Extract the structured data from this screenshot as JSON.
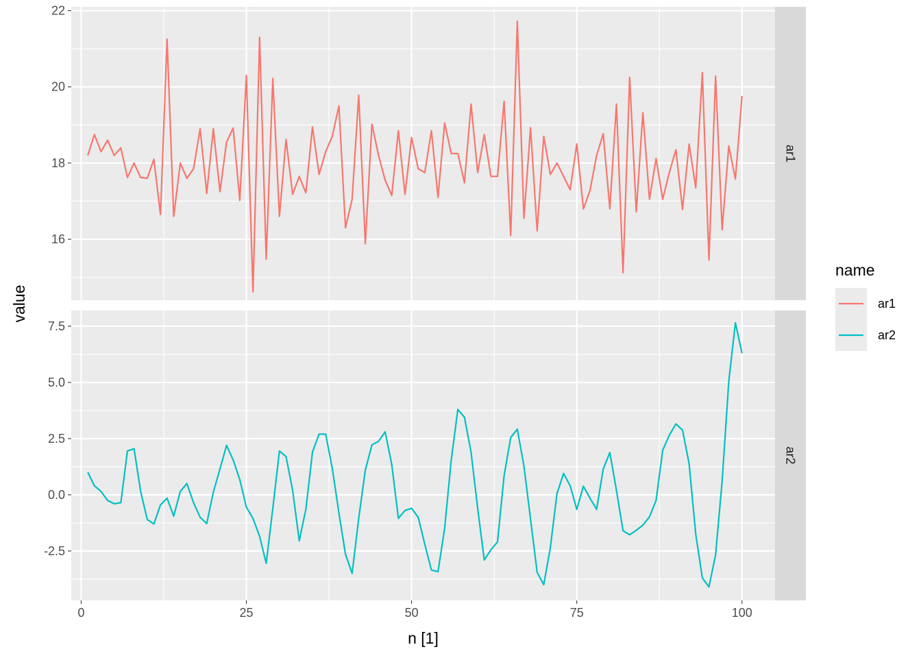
{
  "chart_data": {
    "type": "line",
    "xlabel": "n [1]",
    "ylabel": "value",
    "xlim": [
      -1.5,
      105
    ],
    "x_ticks": [
      0,
      25,
      50,
      75,
      100
    ],
    "x_tick_labels": [
      "0",
      "25",
      "50",
      "75",
      "100"
    ],
    "grid": true,
    "legend": {
      "title": "name",
      "position": "right",
      "entries": [
        "ar1",
        "ar2"
      ]
    },
    "colors": {
      "ar1": "#F8766D",
      "ar2": "#00BFC4"
    },
    "facets": [
      {
        "strip_label": "ar1",
        "ylim": [
          14.4,
          22.1
        ],
        "y_ticks": [
          16,
          18,
          20,
          22
        ],
        "y_tick_labels": [
          "16",
          "18",
          "20",
          "22"
        ],
        "series": {
          "name": "ar1",
          "x": [
            1,
            2,
            3,
            4,
            5,
            6,
            7,
            8,
            9,
            10,
            11,
            12,
            13,
            14,
            15,
            16,
            17,
            18,
            19,
            20,
            21,
            22,
            23,
            24,
            25,
            26,
            27,
            28,
            29,
            30,
            31,
            32,
            33,
            34,
            35,
            36,
            37,
            38,
            39,
            40,
            41,
            42,
            43,
            44,
            45,
            46,
            47,
            48,
            49,
            50,
            51,
            52,
            53,
            54,
            55,
            56,
            57,
            58,
            59,
            60,
            61,
            62,
            63,
            64,
            65,
            66,
            67,
            68,
            69,
            70,
            71,
            72,
            73,
            74,
            75,
            76,
            77,
            78,
            79,
            80,
            81,
            82,
            83,
            84,
            85,
            86,
            87,
            88,
            89,
            90,
            91,
            92,
            93,
            94,
            95,
            96,
            97,
            98,
            99,
            100
          ],
          "values": [
            18.2,
            18.75,
            18.3,
            18.6,
            18.2,
            18.4,
            17.62,
            18.0,
            17.62,
            17.6,
            18.1,
            16.65,
            21.25,
            16.6,
            18.0,
            17.6,
            17.85,
            18.9,
            17.2,
            18.9,
            17.25,
            18.55,
            18.92,
            17.02,
            20.3,
            14.62,
            21.3,
            15.48,
            20.22,
            16.6,
            18.62,
            17.18,
            17.65,
            17.22,
            18.95,
            17.7,
            18.3,
            18.7,
            19.5,
            16.3,
            17.05,
            19.78,
            15.88,
            19.02,
            18.2,
            17.55,
            17.15,
            18.85,
            17.18,
            18.67,
            17.85,
            17.75,
            18.85,
            17.1,
            19.05,
            18.25,
            18.25,
            17.48,
            19.55,
            17.75,
            18.75,
            17.65,
            17.65,
            19.62,
            16.1,
            21.72,
            16.55,
            18.93,
            16.22,
            18.7,
            17.7,
            18.0,
            17.65,
            17.3,
            18.5,
            16.8,
            17.28,
            18.2,
            18.77,
            16.8,
            19.55,
            15.12,
            20.25,
            16.72,
            19.32,
            17.05,
            18.12,
            17.05,
            17.75,
            18.35,
            16.78,
            18.5,
            17.35,
            20.37,
            15.45,
            20.28,
            16.25,
            18.45,
            17.58,
            19.76
          ]
        }
      },
      {
        "strip_label": "ar2",
        "ylim": [
          -4.7,
          8.2
        ],
        "y_ticks": [
          -2.5,
          0.0,
          2.5,
          5.0,
          7.5
        ],
        "y_tick_labels": [
          "-2.5",
          "0.0",
          "2.5",
          "5.0",
          "7.5"
        ],
        "series": {
          "name": "ar2",
          "x": [
            1,
            2,
            3,
            4,
            5,
            6,
            7,
            8,
            9,
            10,
            11,
            12,
            13,
            14,
            15,
            16,
            17,
            18,
            19,
            20,
            21,
            22,
            23,
            24,
            25,
            26,
            27,
            28,
            29,
            30,
            31,
            32,
            33,
            34,
            35,
            36,
            37,
            38,
            39,
            40,
            41,
            42,
            43,
            44,
            45,
            46,
            47,
            48,
            49,
            50,
            51,
            52,
            53,
            54,
            55,
            56,
            57,
            58,
            59,
            60,
            61,
            62,
            63,
            64,
            65,
            66,
            67,
            68,
            69,
            70,
            71,
            72,
            73,
            74,
            75,
            76,
            77,
            78,
            79,
            80,
            81,
            82,
            83,
            84,
            85,
            86,
            87,
            88,
            89,
            90,
            91,
            92,
            93,
            94,
            95,
            96,
            97,
            98,
            99,
            100
          ],
          "values": [
            1.0,
            0.4,
            0.15,
            -0.25,
            -0.4,
            -0.35,
            1.95,
            2.05,
            0.15,
            -1.1,
            -1.3,
            -0.45,
            -0.15,
            -0.95,
            0.15,
            0.5,
            -0.35,
            -1.0,
            -1.28,
            0.12,
            1.15,
            2.2,
            1.55,
            0.68,
            -0.55,
            -1.05,
            -1.85,
            -3.05,
            -0.6,
            1.95,
            1.7,
            0.2,
            -2.05,
            -0.65,
            1.9,
            2.7,
            2.7,
            1.18,
            -0.8,
            -2.65,
            -3.5,
            -1.05,
            1.1,
            2.22,
            2.38,
            2.8,
            1.35,
            -1.05,
            -0.7,
            -0.6,
            -1.0,
            -2.2,
            -3.35,
            -3.42,
            -1.5,
            1.55,
            3.8,
            3.45,
            1.9,
            -0.6,
            -2.9,
            -2.45,
            -2.1,
            0.85,
            2.55,
            2.92,
            1.28,
            -1.08,
            -3.45,
            -4.0,
            -2.35,
            0.05,
            0.95,
            0.4,
            -0.65,
            0.38,
            -0.15,
            -0.65,
            1.15,
            1.88,
            0.2,
            -1.6,
            -1.78,
            -1.58,
            -1.35,
            -0.98,
            -0.25,
            1.98,
            2.65,
            3.15,
            2.88,
            1.38,
            -1.75,
            -3.7,
            -4.1,
            -2.68,
            0.62,
            5.05,
            7.65,
            6.3
          ]
        }
      }
    ]
  }
}
